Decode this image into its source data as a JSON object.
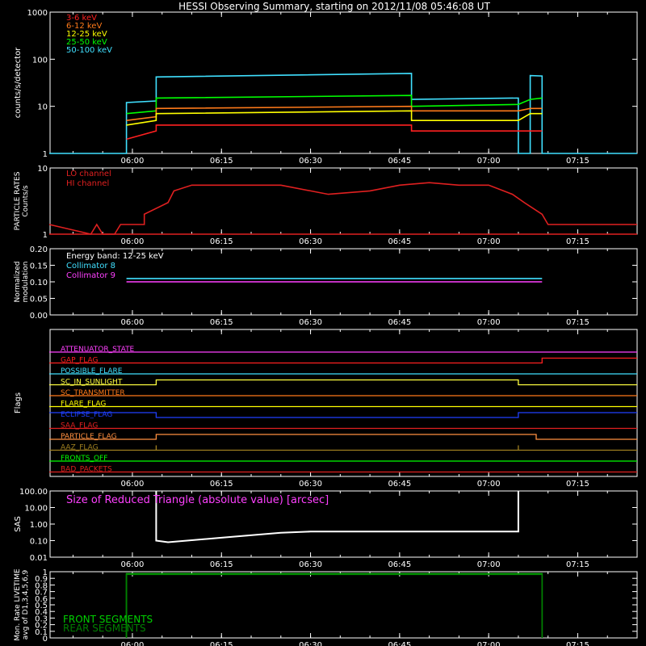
{
  "title": "HESSI Observing Summary, starting on 2012/11/08 05:46:08 UT",
  "colors": {
    "background": "#000000",
    "axes": "#ffffff",
    "c3_6": "#ff2020",
    "c6_12": "#ff7a1a",
    "c12_25": "#ffff00",
    "c25_50": "#00ff00",
    "c50_100": "#40e0ff",
    "particle": "#e02020",
    "coll8": "#40e0ff",
    "coll9": "#ff40ff",
    "front": "#00d000",
    "rear": "#008000"
  },
  "time_axis": {
    "start": "05:46:08",
    "end": "07:25:00",
    "ticks": [
      "06:00",
      "06:15",
      "06:30",
      "06:45",
      "07:00",
      "07:15"
    ]
  },
  "chart_data": [
    {
      "type": "line",
      "id": "count_rates",
      "ylabel": "counts/s/detector",
      "ylog": true,
      "ylim": [
        1,
        1000
      ],
      "yticks": [
        "1",
        "10",
        "100",
        "1000"
      ],
      "legend": [
        {
          "name": "3-6 keV",
          "color": "#ff2020"
        },
        {
          "name": "6-12 keV",
          "color": "#ff7a1a"
        },
        {
          "name": "12-25 keV",
          "color": "#ffff00"
        },
        {
          "name": "25-50 keV",
          "color": "#00ff00"
        },
        {
          "name": "50-100 keV",
          "color": "#40e0ff"
        }
      ],
      "series": [
        {
          "name": "50-100 keV",
          "color": "#40e0ff",
          "x": [
            "05:46",
            "05:59",
            "05:59",
            "06:04",
            "06:04",
            "06:47",
            "06:47",
            "07:05",
            "07:05",
            "07:07",
            "07:07",
            "07:09",
            "07:09",
            "07:25"
          ],
          "y": [
            1,
            1,
            12,
            13,
            42,
            50,
            14,
            15,
            1,
            1,
            45,
            44,
            1,
            1
          ]
        },
        {
          "name": "25-50 keV",
          "color": "#00ff00",
          "x": [
            "05:59",
            "06:04",
            "06:04",
            "06:47",
            "06:47",
            "07:05",
            "07:07",
            "07:09"
          ],
          "y": [
            7,
            8,
            15,
            17,
            10,
            11,
            14,
            15
          ]
        },
        {
          "name": "6-12 keV",
          "color": "#ff7a1a",
          "x": [
            "05:59",
            "06:04",
            "06:04",
            "06:47",
            "06:47",
            "07:05",
            "07:07",
            "07:09"
          ],
          "y": [
            5,
            6,
            9,
            10,
            8,
            8,
            9,
            9
          ]
        },
        {
          "name": "12-25 keV",
          "color": "#ffff00",
          "x": [
            "05:59",
            "06:04",
            "06:04",
            "06:47",
            "06:47",
            "07:05",
            "07:07",
            "07:09"
          ],
          "y": [
            4,
            5,
            7,
            8,
            5,
            5,
            7,
            7
          ]
        },
        {
          "name": "3-6 keV",
          "color": "#ff2020",
          "x": [
            "05:59",
            "06:04",
            "06:04",
            "06:47",
            "06:47",
            "07:05",
            "07:07",
            "07:09"
          ],
          "y": [
            2,
            3,
            4,
            4,
            3,
            3,
            3,
            3
          ]
        }
      ]
    },
    {
      "type": "line",
      "id": "particle_rates",
      "ylabel": [
        "PARTICLE RATES",
        "Counts/s"
      ],
      "ylog": true,
      "ylim": [
        1,
        10
      ],
      "yticks": [
        "1",
        "10"
      ],
      "legend": [
        {
          "name": "LO channel",
          "color": "#e02020"
        },
        {
          "name": "HI channel",
          "color": "#e02020"
        }
      ],
      "series": [
        {
          "name": "LO channel",
          "color": "#e02020",
          "x": [
            "05:46",
            "05:53",
            "05:54",
            "05:55",
            "05:57",
            "05:58",
            "06:02",
            "06:02",
            "06:06",
            "06:07",
            "06:10",
            "06:25",
            "06:30",
            "06:33",
            "06:40",
            "06:45",
            "06:50",
            "06:55",
            "07:00",
            "07:04",
            "07:06",
            "07:09",
            "07:10",
            "07:25"
          ],
          "y": [
            1.4,
            1,
            1.4,
            1,
            1,
            1.4,
            1.4,
            2,
            3,
            4.5,
            5.5,
            5.5,
            4.5,
            4,
            4.5,
            5.5,
            6,
            5.5,
            5.5,
            4,
            3,
            2,
            1.4,
            1.4
          ]
        },
        {
          "name": "HI channel",
          "color": "#e02020",
          "x": [
            "05:46",
            "07:25"
          ],
          "y": [
            1,
            1
          ]
        }
      ]
    },
    {
      "type": "line",
      "id": "modulation",
      "ylabel": [
        "Normalized",
        "modulation"
      ],
      "ylim": [
        0,
        0.2
      ],
      "yticks": [
        "0.00",
        "0.05",
        "0.10",
        "0.15",
        "0.20"
      ],
      "annotation": "Energy band: 12-25 keV",
      "legend": [
        {
          "name": "Collimator 8",
          "color": "#40e0ff"
        },
        {
          "name": "Collimator 9",
          "color": "#ff40ff"
        }
      ],
      "series": [
        {
          "name": "Collimator 8",
          "color": "#40e0ff",
          "x": [
            "05:59",
            "07:09"
          ],
          "y": [
            0.11,
            0.11
          ]
        },
        {
          "name": "Collimator 9",
          "color": "#ff40ff",
          "x": [
            "05:59",
            "07:09"
          ],
          "y": [
            0.1,
            0.1
          ]
        }
      ]
    },
    {
      "type": "line",
      "id": "flags",
      "ylabel": "Flags",
      "flags": [
        {
          "name": "ATTENUATOR_STATE",
          "color": "#ff40ff",
          "x": [
            "05:46",
            "07:25"
          ],
          "y": [
            0,
            0
          ]
        },
        {
          "name": "GAP_FLAG",
          "color": "#ff2020",
          "x": [
            "05:46",
            "07:09",
            "07:09",
            "07:25"
          ],
          "y": [
            0,
            0,
            1,
            1
          ]
        },
        {
          "name": "POSSIBLE_FLARE",
          "color": "#40e0ff",
          "x": [
            "05:46",
            "07:25"
          ],
          "y": [
            0,
            0
          ]
        },
        {
          "name": "SC_IN_SUNLIGHT",
          "color": "#ffff40",
          "x": [
            "05:46",
            "06:04",
            "06:04",
            "07:05",
            "07:05",
            "07:25"
          ],
          "y": [
            0,
            0,
            1,
            1,
            0,
            0
          ]
        },
        {
          "name": "SC_TRANSMITTER",
          "color": "#ff7a1a",
          "x": [
            "05:46",
            "07:25"
          ],
          "y": [
            0,
            0
          ]
        },
        {
          "name": "FLARE_FLAG",
          "color": "#ffff00",
          "x": [
            "05:46",
            "07:25"
          ],
          "y": [
            0,
            0
          ]
        },
        {
          "name": "ECLIPSE_FLAG",
          "color": "#2040ff",
          "x": [
            "05:46",
            "06:04",
            "06:04",
            "07:05",
            "07:05",
            "07:25"
          ],
          "y": [
            1,
            1,
            0,
            0,
            1,
            1
          ]
        },
        {
          "name": "SAA_FLAG",
          "color": "#e02020",
          "x": [
            "05:46",
            "07:25"
          ],
          "y": [
            0,
            0
          ]
        },
        {
          "name": "PARTICLE_FLAG",
          "color": "#ff9040",
          "x": [
            "05:46",
            "06:04",
            "06:04",
            "07:08",
            "07:08",
            "07:25"
          ],
          "y": [
            0,
            0,
            1,
            1,
            0,
            0
          ]
        },
        {
          "name": "AAZ_FLAG",
          "color": "#a08020",
          "x": [
            "05:46",
            "06:04",
            "06:04",
            "06:04",
            "06:04",
            "07:05",
            "07:05",
            "07:05",
            "07:05",
            "07:25"
          ],
          "y": [
            0,
            0,
            1,
            1,
            0,
            0,
            1,
            1,
            0,
            0
          ]
        },
        {
          "name": "FRONTS_OFF",
          "color": "#00ff00",
          "x": [
            "05:46",
            "07:25"
          ],
          "y": [
            0,
            0
          ]
        },
        {
          "name": "BAD_PACKETS",
          "color": "#e02020",
          "x": [
            "05:46",
            "07:25"
          ],
          "y": [
            0,
            0
          ]
        }
      ]
    },
    {
      "type": "line",
      "id": "sas",
      "ylabel": "SAS",
      "ylog": true,
      "ylim": [
        0.01,
        100
      ],
      "yticks": [
        "0.01",
        "0.10",
        "1.00",
        "10.00",
        "100.00"
      ],
      "annotation": "Size of Reduced Triangle (absolute value) [arcsec]",
      "series": [
        {
          "name": "",
          "color": "#ffffff",
          "x": [
            "06:04",
            "06:04",
            "06:06",
            "06:15",
            "06:25",
            "06:30",
            "06:45",
            "07:00",
            "07:05",
            "07:05"
          ],
          "y": [
            100,
            0.1,
            0.08,
            0.15,
            0.3,
            0.35,
            0.35,
            0.35,
            0.35,
            100
          ]
        }
      ]
    },
    {
      "type": "line",
      "id": "livetime",
      "ylabel": [
        "Mon. Rate LIVETIME",
        "avg of D1,3,4,5,6,9"
      ],
      "ylim": [
        0,
        1
      ],
      "yticks": [
        "0",
        "0.1",
        "0.2",
        "0.3",
        "0.4",
        "0.5",
        "0.6",
        "0.7",
        "0.8",
        "0.9",
        "1"
      ],
      "legend": [
        {
          "name": "FRONT SEGMENTS",
          "color": "#00d000"
        },
        {
          "name": "REAR SEGMENTS",
          "color": "#008000"
        }
      ],
      "series": [
        {
          "name": "FRONT SEGMENTS",
          "color": "#00d000",
          "x": [
            "05:59",
            "05:59",
            "07:09",
            "07:09"
          ],
          "y": [
            0,
            0.97,
            0.97,
            0
          ]
        },
        {
          "name": "REAR SEGMENTS",
          "color": "#008000",
          "x": [
            "05:59",
            "05:59",
            "07:09",
            "07:09"
          ],
          "y": [
            0,
            0.96,
            0.96,
            0
          ]
        }
      ]
    }
  ]
}
